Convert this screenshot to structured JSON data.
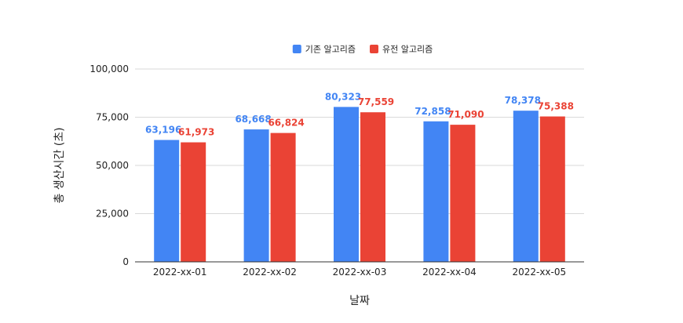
{
  "chart_data": {
    "type": "bar",
    "title": "",
    "xlabel": "날짜",
    "ylabel": "총 생산시간 (초)",
    "categories": [
      "2022-xx-01",
      "2022-xx-02",
      "2022-xx-03",
      "2022-xx-04",
      "2022-xx-05"
    ],
    "series": [
      {
        "name": "기존 알고리즘",
        "color": "#4285f4",
        "values": [
          63196,
          68668,
          80323,
          72858,
          78378
        ]
      },
      {
        "name": "유전 알고리즘",
        "color": "#ea4335",
        "values": [
          61973,
          66824,
          77559,
          71090,
          75388
        ]
      }
    ],
    "ylim": [
      0,
      100000
    ],
    "yticks": [
      "0",
      "25,000",
      "50,000",
      "75,000",
      "100,000"
    ],
    "grid": true,
    "legend_position": "top-center",
    "data_labels": true
  }
}
